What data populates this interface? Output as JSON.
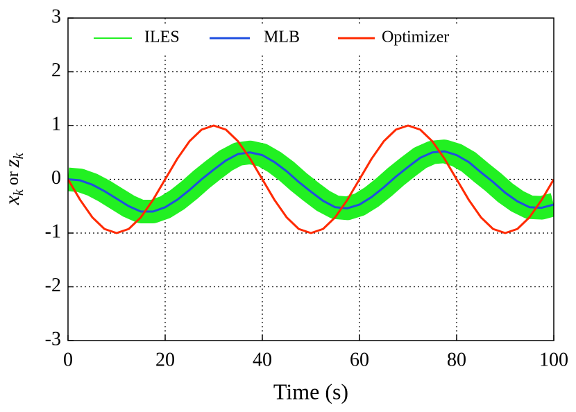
{
  "chart_data": {
    "type": "line",
    "xlabel": "Time (s)",
    "ylabel": [
      "x",
      "k",
      "or",
      "z",
      "k"
    ],
    "x": [
      0,
      2.5,
      5,
      7.5,
      10,
      12.5,
      15,
      17.5,
      20,
      22.5,
      25,
      27.5,
      30,
      32.5,
      35,
      37.5,
      40,
      42.5,
      45,
      47.5,
      50,
      52.5,
      55,
      57.5,
      60,
      62.5,
      65,
      67.5,
      70,
      72.5,
      75,
      77.5,
      80,
      82.5,
      85,
      87.5,
      90,
      92.5,
      95,
      97.5,
      100
    ],
    "series": [
      {
        "name": "ILES",
        "color": "#22f022",
        "values": [
          0,
          -0.02,
          -0.1,
          -0.22,
          -0.36,
          -0.5,
          -0.6,
          -0.6,
          -0.52,
          -0.38,
          -0.2,
          0,
          0.18,
          0.35,
          0.47,
          0.5,
          0.45,
          0.32,
          0.15,
          -0.05,
          -0.23,
          -0.4,
          -0.52,
          -0.54,
          -0.47,
          -0.33,
          -0.15,
          0.05,
          0.23,
          0.4,
          0.5,
          0.52,
          0.45,
          0.32,
          0.13,
          -0.05,
          -0.25,
          -0.41,
          -0.52,
          -0.53,
          -0.47
        ]
      },
      {
        "name": "MLB",
        "color": "#1f4fe0",
        "values": [
          0,
          -0.02,
          -0.1,
          -0.22,
          -0.36,
          -0.5,
          -0.6,
          -0.6,
          -0.52,
          -0.38,
          -0.2,
          0,
          0.18,
          0.35,
          0.47,
          0.5,
          0.45,
          0.32,
          0.15,
          -0.05,
          -0.23,
          -0.4,
          -0.52,
          -0.54,
          -0.47,
          -0.33,
          -0.15,
          0.05,
          0.23,
          0.4,
          0.5,
          0.52,
          0.45,
          0.32,
          0.13,
          -0.05,
          -0.25,
          -0.41,
          -0.52,
          -0.53,
          -0.47
        ]
      },
      {
        "name": "Optimizer",
        "color": "#ff2a00",
        "values": [
          0,
          -0.383,
          -0.707,
          -0.924,
          -1,
          -0.924,
          -0.707,
          -0.383,
          0,
          0.383,
          0.707,
          0.924,
          1,
          0.924,
          0.707,
          0.383,
          0,
          -0.383,
          -0.707,
          -0.924,
          -1,
          -0.924,
          -0.707,
          -0.383,
          0,
          0.383,
          0.707,
          0.924,
          1,
          0.924,
          0.707,
          0.383,
          0,
          -0.383,
          -0.707,
          -0.924,
          -1,
          -0.924,
          -0.707,
          -0.383,
          0
        ]
      }
    ],
    "xlim": [
      0,
      100
    ],
    "xticks": [
      0,
      20,
      40,
      60,
      80,
      100
    ],
    "ylim": [
      -3,
      3
    ],
    "yticks": [
      -3,
      -2,
      -1,
      0,
      1,
      2,
      3
    ],
    "grid": true
  }
}
